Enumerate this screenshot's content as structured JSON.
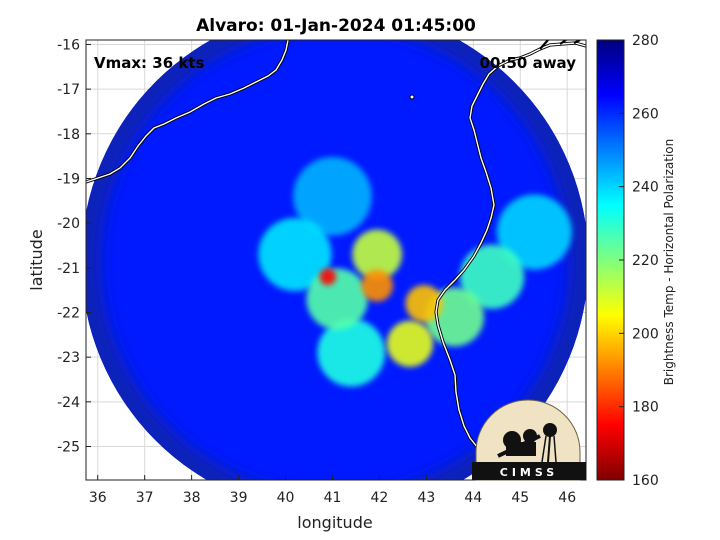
{
  "chart_data": {
    "type": "heatmap",
    "title": "Alvaro: 01-Jan-2024 01:45:00",
    "xlabel": "longitude",
    "ylabel": "latitude",
    "xlim": [
      35.75,
      46.4
    ],
    "ylim": [
      -25.75,
      -15.9
    ],
    "x_ticks": [
      36,
      37,
      38,
      39,
      40,
      41,
      42,
      43,
      44,
      45,
      46
    ],
    "y_ticks": [
      -16,
      -17,
      -18,
      -19,
      -20,
      -21,
      -22,
      -23,
      -24,
      -25
    ],
    "grid": true,
    "colorbar": {
      "label": "Brightness Temp - Horizontal Polarization",
      "range": [
        160,
        280
      ],
      "ticks": [
        160,
        180,
        200,
        220,
        240,
        260,
        280
      ],
      "colormap": "jet"
    },
    "swath": {
      "center_lon": 41.05,
      "center_lat": -20.85,
      "radius_deg": 5.4
    },
    "features": [
      {
        "lon": 40.9,
        "lat": -21.2,
        "value": 175
      },
      {
        "lon": 41.95,
        "lat": -21.4,
        "value": 192
      },
      {
        "lon": 42.95,
        "lat": -21.8,
        "value": 198
      },
      {
        "lon": 42.65,
        "lat": -22.7,
        "value": 208
      },
      {
        "lon": 41.95,
        "lat": -20.7,
        "value": 212
      },
      {
        "lon": 41.1,
        "lat": -21.7,
        "value": 225
      },
      {
        "lon": 43.6,
        "lat": -22.1,
        "value": 222
      },
      {
        "lon": 44.4,
        "lat": -21.2,
        "value": 228
      },
      {
        "lon": 41.4,
        "lat": -22.9,
        "value": 232
      },
      {
        "lon": 40.2,
        "lat": -20.7,
        "value": 238
      },
      {
        "lon": 45.3,
        "lat": -20.2,
        "value": 240
      },
      {
        "lon": 41.0,
        "lat": -19.4,
        "value": 244
      }
    ]
  },
  "overlay": {
    "vmax": "Vmax: 36 kts",
    "time_away": "00:50 away"
  },
  "logo": {
    "text": "CIMSS"
  },
  "colors": {
    "background": "#ffffff",
    "coastline": "#ffffff",
    "coastline_outline": "#000000"
  }
}
